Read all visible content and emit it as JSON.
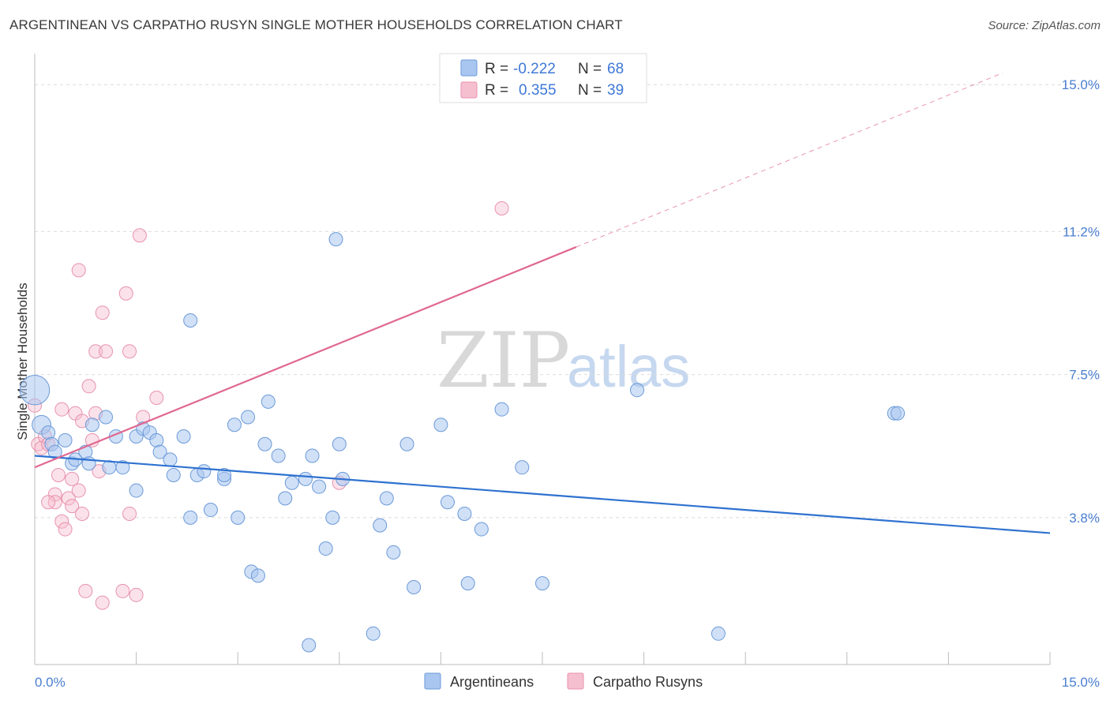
{
  "title": "ARGENTINEAN VS CARPATHO RUSYN SINGLE MOTHER HOUSEHOLDS CORRELATION CHART",
  "source": "Source: ZipAtlas.com",
  "watermark": {
    "zip": "ZIP",
    "atlas": "atlas"
  },
  "colors": {
    "blue_fill": "#a9c6f0",
    "blue_stroke": "#6b9ad8",
    "blue_line": "#2f72d0",
    "pink_fill": "#f6bfd0",
    "pink_stroke": "#e892ae",
    "pink_line": "#e06890",
    "tick_text": "#4a7fd0",
    "grid": "#dcdcdc"
  },
  "legend": {
    "rows": [
      {
        "r_label": "R =",
        "r_value": "-0.222",
        "n_label": "N =",
        "n_value": "68"
      },
      {
        "r_label": "R =",
        "r_value": "0.355",
        "n_label": "N =",
        "n_value": "39"
      }
    ]
  },
  "chart_data": {
    "type": "scatter",
    "title": "ARGENTINEAN VS CARPATHO RUSYN SINGLE MOTHER HOUSEHOLDS CORRELATION CHART",
    "xlabel": "",
    "ylabel": "Single Mother Households",
    "xlim": [
      0,
      15
    ],
    "ylim": [
      0,
      15.8
    ],
    "x_tick_labels": [
      "0.0%",
      "15.0%"
    ],
    "y_ticks": [
      3.8,
      7.5,
      11.2,
      15.0
    ],
    "y_tick_labels": [
      "3.8%",
      "7.5%",
      "11.2%",
      "15.0%"
    ],
    "series": [
      {
        "name": "Argentineans",
        "color": "blue",
        "trend": {
          "x0": 0.0,
          "y0": 5.4,
          "x1": 15.0,
          "y1": 3.4,
          "dashed_to": null
        },
        "points": [
          [
            0.0,
            7.1,
            2.2
          ],
          [
            0.1,
            6.2,
            1.4
          ],
          [
            0.2,
            6.0,
            1
          ],
          [
            0.25,
            5.7,
            1
          ],
          [
            0.3,
            5.5,
            1
          ],
          [
            0.45,
            5.8,
            1
          ],
          [
            0.55,
            5.2,
            1
          ],
          [
            0.6,
            5.3,
            1
          ],
          [
            0.75,
            5.5,
            1
          ],
          [
            0.8,
            5.2,
            1
          ],
          [
            0.85,
            6.2,
            1
          ],
          [
            1.05,
            6.4,
            1
          ],
          [
            1.1,
            5.1,
            1
          ],
          [
            1.2,
            5.9,
            1
          ],
          [
            1.3,
            5.1,
            1
          ],
          [
            1.5,
            4.5,
            1
          ],
          [
            1.5,
            5.9,
            1
          ],
          [
            1.6,
            6.1,
            1
          ],
          [
            1.7,
            6.0,
            1
          ],
          [
            1.8,
            5.8,
            1
          ],
          [
            1.85,
            5.5,
            1
          ],
          [
            2.0,
            5.3,
            1
          ],
          [
            2.05,
            4.9,
            1
          ],
          [
            2.2,
            5.9,
            1
          ],
          [
            2.3,
            3.8,
            1
          ],
          [
            2.3,
            8.9,
            1
          ],
          [
            2.4,
            4.9,
            1
          ],
          [
            2.5,
            5.0,
            1
          ],
          [
            2.6,
            4.0,
            1
          ],
          [
            2.8,
            4.8,
            1
          ],
          [
            2.8,
            4.9,
            1
          ],
          [
            2.95,
            6.2,
            1
          ],
          [
            3.0,
            3.8,
            1
          ],
          [
            3.15,
            6.4,
            1
          ],
          [
            3.2,
            2.4,
            1
          ],
          [
            3.3,
            2.3,
            1
          ],
          [
            3.4,
            5.7,
            1
          ],
          [
            3.45,
            6.8,
            1
          ],
          [
            3.6,
            5.4,
            1
          ],
          [
            3.7,
            4.3,
            1
          ],
          [
            3.8,
            4.7,
            1
          ],
          [
            4.0,
            4.8,
            1
          ],
          [
            4.05,
            0.5,
            1
          ],
          [
            4.1,
            5.4,
            1
          ],
          [
            4.2,
            4.6,
            1
          ],
          [
            4.3,
            3.0,
            1
          ],
          [
            4.4,
            3.8,
            1
          ],
          [
            4.45,
            11.0,
            1
          ],
          [
            4.5,
            5.7,
            1
          ],
          [
            4.55,
            4.8,
            1
          ],
          [
            5.0,
            0.8,
            1
          ],
          [
            5.1,
            3.6,
            1
          ],
          [
            5.2,
            4.3,
            1
          ],
          [
            5.3,
            2.9,
            1
          ],
          [
            5.5,
            5.7,
            1
          ],
          [
            5.6,
            2.0,
            1
          ],
          [
            6.0,
            6.2,
            1
          ],
          [
            6.1,
            4.2,
            1
          ],
          [
            6.35,
            3.9,
            1
          ],
          [
            6.4,
            2.1,
            1
          ],
          [
            6.6,
            3.5,
            1
          ],
          [
            6.9,
            6.6,
            1
          ],
          [
            7.2,
            5.1,
            1
          ],
          [
            7.5,
            2.1,
            1
          ],
          [
            8.9,
            7.1,
            1
          ],
          [
            10.1,
            0.8,
            1
          ],
          [
            12.7,
            6.5,
            1
          ],
          [
            12.75,
            6.5,
            1
          ]
        ]
      },
      {
        "name": "Carpatho Rusyns",
        "color": "pink",
        "trend": {
          "x0": 0.0,
          "y0": 5.1,
          "x1": 8.0,
          "y1": 10.8,
          "dashed_to": {
            "x": 14.3,
            "y": 15.3
          }
        },
        "points": [
          [
            0.0,
            6.7,
            1
          ],
          [
            0.05,
            5.7,
            1
          ],
          [
            0.1,
            5.6,
            1
          ],
          [
            0.15,
            5.9,
            1
          ],
          [
            0.2,
            5.7,
            1
          ],
          [
            0.3,
            4.4,
            1
          ],
          [
            0.3,
            4.2,
            1
          ],
          [
            0.35,
            4.9,
            1
          ],
          [
            0.4,
            3.7,
            1
          ],
          [
            0.4,
            6.6,
            1
          ],
          [
            0.45,
            3.5,
            1
          ],
          [
            0.5,
            4.3,
            1
          ],
          [
            0.55,
            4.8,
            1
          ],
          [
            0.55,
            4.1,
            1
          ],
          [
            0.6,
            6.5,
            1
          ],
          [
            0.65,
            4.5,
            1
          ],
          [
            0.65,
            10.2,
            1
          ],
          [
            0.7,
            3.9,
            1
          ],
          [
            0.7,
            6.3,
            1
          ],
          [
            0.75,
            1.9,
            1
          ],
          [
            0.8,
            7.2,
            1
          ],
          [
            0.85,
            5.8,
            1
          ],
          [
            0.9,
            6.5,
            1
          ],
          [
            0.9,
            8.1,
            1
          ],
          [
            0.95,
            5.0,
            1
          ],
          [
            1.0,
            1.6,
            1
          ],
          [
            1.0,
            9.1,
            1
          ],
          [
            1.05,
            8.1,
            1
          ],
          [
            1.3,
            1.9,
            1
          ],
          [
            1.35,
            9.6,
            1
          ],
          [
            1.4,
            3.9,
            1
          ],
          [
            1.4,
            8.1,
            1
          ],
          [
            1.5,
            1.8,
            1
          ],
          [
            1.55,
            11.1,
            1
          ],
          [
            1.6,
            6.4,
            1
          ],
          [
            1.8,
            6.9,
            1
          ],
          [
            4.5,
            4.7,
            1
          ],
          [
            6.9,
            11.8,
            1
          ],
          [
            0.2,
            4.2,
            1
          ]
        ]
      }
    ],
    "legend_labels": [
      "Argentineans",
      "Carpatho Rusyns"
    ]
  }
}
